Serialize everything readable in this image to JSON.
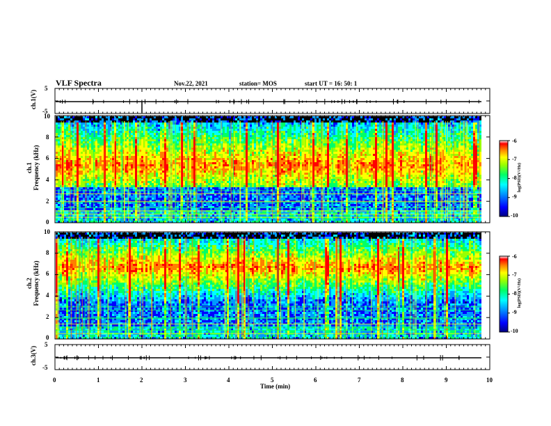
{
  "header": {
    "title": "VLF Spectra",
    "date": "Nov.22, 2021",
    "station": "station= MOS",
    "start": "start UT =  16: 50: 1"
  },
  "panels": {
    "ch1_wave": {
      "label": "ch.1(V)",
      "y_ticks": [
        "5",
        "-5"
      ]
    },
    "ch1_spec": {
      "label_line1": "ch.1",
      "label_line2": "Frequency (kHz)"
    },
    "ch2_spec": {
      "label_line1": "ch.2",
      "label_line2": "Frequency (kHz)"
    },
    "ch3_wave": {
      "label": "ch.3(V)",
      "y_ticks": [
        "5",
        "-5"
      ]
    }
  },
  "colorbars": [
    {
      "title": "log(PSD)(V²/Hz)",
      "ticks": [
        "-6",
        "-7",
        "-8",
        "-9",
        "-10"
      ]
    },
    {
      "title": "log(PSD)(V²/Hz)",
      "ticks": [
        "-6",
        "-7",
        "-8",
        "-9",
        "-10"
      ]
    }
  ],
  "colors": {
    "colormap": [
      "#000000",
      "#00007f",
      "#0000ff",
      "#0099ff",
      "#00ffff",
      "#00ff66",
      "#99ff00",
      "#ffff00",
      "#ff7f00",
      "#ff0000",
      "#ffffff"
    ]
  },
  "chart_data": {
    "type": "heatmap",
    "xlabel": "Time (min)",
    "x_ticks": [
      "0",
      "1",
      "2",
      "3",
      "4",
      "5",
      "6",
      "7",
      "8",
      "9",
      "10"
    ],
    "xlim": [
      0,
      10
    ],
    "ylim": [
      0,
      10
    ],
    "y_ticks": [
      "0",
      "2",
      "4",
      "6",
      "8",
      "10"
    ],
    "color_range": [
      -10,
      -6
    ],
    "series": [
      {
        "name": "ch.1",
        "ylabel": "Frequency (kHz)"
      },
      {
        "name": "ch.2",
        "ylabel": "Frequency (kHz)"
      }
    ]
  }
}
